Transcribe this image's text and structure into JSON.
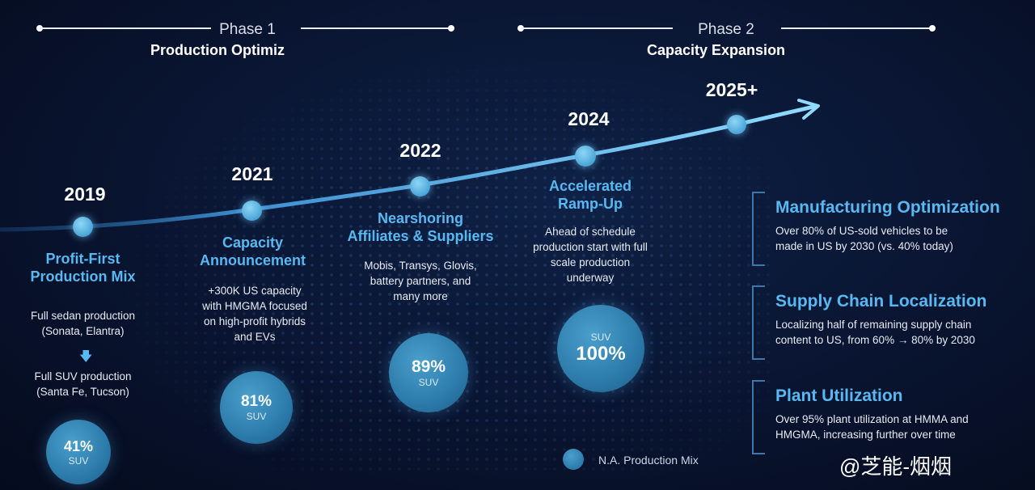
{
  "phases": [
    {
      "label": "Phase 1",
      "subtitle": "Production Optimiz"
    },
    {
      "label": "Phase 2",
      "subtitle": "Capacity Expansion"
    }
  ],
  "milestones": [
    {
      "year": "2019",
      "title_line1": "Profit-First",
      "title_line2": "Production Mix",
      "desc_before": "Full sedan production",
      "desc_before_2": "(Sonata, Elantra)",
      "desc_after": "Full SUV production",
      "desc_after_2": "(Santa Fe, Tucson)",
      "bubble_value": "41%",
      "bubble_label": "SUV"
    },
    {
      "year": "2021",
      "title_line1": "Capacity",
      "title_line2": "Announcement",
      "desc_line1": "+300K US capacity",
      "desc_line2": "with HMGMA focused",
      "desc_line3": "on high-profit hybrids",
      "desc_line4": "and EVs",
      "bubble_value": "81%",
      "bubble_label": "SUV"
    },
    {
      "year": "2022",
      "title_line1": "Nearshoring",
      "title_line2": "Affiliates & Suppliers",
      "desc_line1": "Mobis, Transys, Glovis,",
      "desc_line2": "battery partners, and",
      "desc_line3": "many more",
      "bubble_value": "89%",
      "bubble_label": "SUV"
    },
    {
      "year": "2024",
      "title_line1": "Accelerated",
      "title_line2": "Ramp-Up",
      "desc_line1": "Ahead of schedule",
      "desc_line2": "production start with full",
      "desc_line3": "scale production",
      "desc_line4": "underway",
      "bubble_value": "100%",
      "bubble_label": "SUV"
    },
    {
      "year": "2025+"
    }
  ],
  "cards": [
    {
      "title": "Manufacturing Optimization",
      "line1": "Over 80% of US-sold vehicles to be",
      "line2": "made in US by 2030 (vs. 40% today)"
    },
    {
      "title": "Supply Chain Localization",
      "line1": "Localizing half of remaining supply chain",
      "line2": "content to US, from 60% → 80% by 2030"
    },
    {
      "title": "Plant Utilization",
      "line1": "Over 95% plant utilization at HMMA and",
      "line2": "HMGMA, increasing further over time"
    }
  ],
  "legend": {
    "label": "N.A. Production Mix"
  },
  "watermark": "@芝能-烟烟",
  "colors": {
    "accent": "#58b8f2",
    "background": "#091430",
    "bubble": "#2c7bab"
  }
}
